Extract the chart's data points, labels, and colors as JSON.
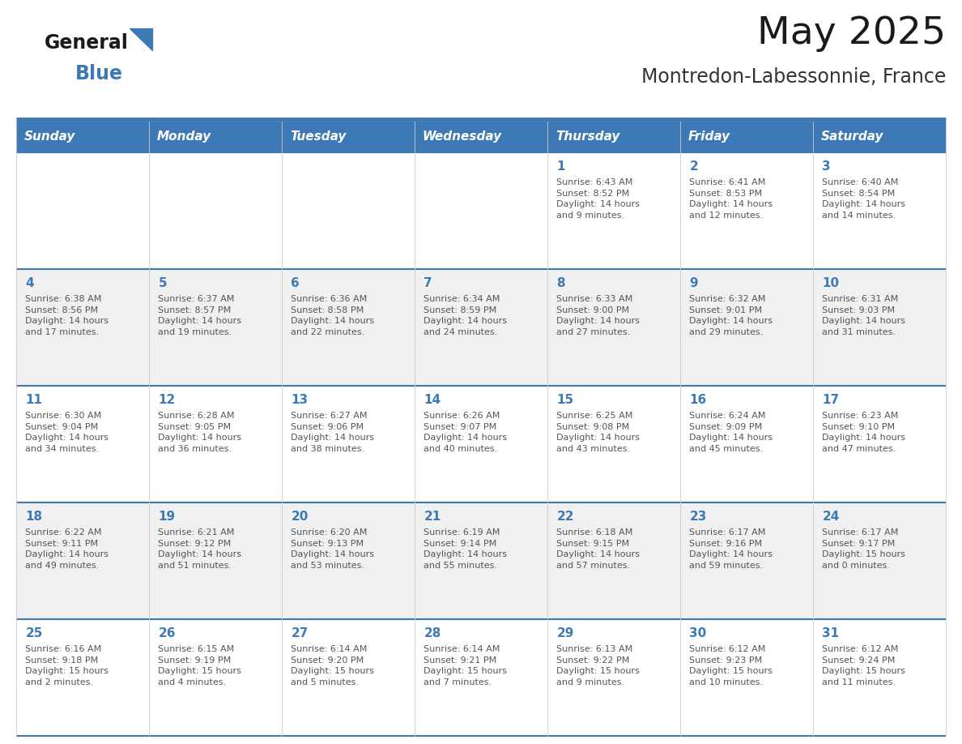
{
  "title": "May 2025",
  "subtitle": "Montredon-Labessonnie, France",
  "header_bg_color": "#3d7ab5",
  "header_text_color": "#ffffff",
  "cell_bg_white": "#ffffff",
  "cell_bg_gray": "#f0f0f0",
  "day_number_color": "#3d7ab5",
  "info_text_color": "#555555",
  "border_color": "#3d7ab5",
  "grid_line_color": "#cccccc",
  "days_of_week": [
    "Sunday",
    "Monday",
    "Tuesday",
    "Wednesday",
    "Thursday",
    "Friday",
    "Saturday"
  ],
  "weeks": [
    [
      {
        "day": "",
        "info": ""
      },
      {
        "day": "",
        "info": ""
      },
      {
        "day": "",
        "info": ""
      },
      {
        "day": "",
        "info": ""
      },
      {
        "day": "1",
        "info": "Sunrise: 6:43 AM\nSunset: 8:52 PM\nDaylight: 14 hours\nand 9 minutes."
      },
      {
        "day": "2",
        "info": "Sunrise: 6:41 AM\nSunset: 8:53 PM\nDaylight: 14 hours\nand 12 minutes."
      },
      {
        "day": "3",
        "info": "Sunrise: 6:40 AM\nSunset: 8:54 PM\nDaylight: 14 hours\nand 14 minutes."
      }
    ],
    [
      {
        "day": "4",
        "info": "Sunrise: 6:38 AM\nSunset: 8:56 PM\nDaylight: 14 hours\nand 17 minutes."
      },
      {
        "day": "5",
        "info": "Sunrise: 6:37 AM\nSunset: 8:57 PM\nDaylight: 14 hours\nand 19 minutes."
      },
      {
        "day": "6",
        "info": "Sunrise: 6:36 AM\nSunset: 8:58 PM\nDaylight: 14 hours\nand 22 minutes."
      },
      {
        "day": "7",
        "info": "Sunrise: 6:34 AM\nSunset: 8:59 PM\nDaylight: 14 hours\nand 24 minutes."
      },
      {
        "day": "8",
        "info": "Sunrise: 6:33 AM\nSunset: 9:00 PM\nDaylight: 14 hours\nand 27 minutes."
      },
      {
        "day": "9",
        "info": "Sunrise: 6:32 AM\nSunset: 9:01 PM\nDaylight: 14 hours\nand 29 minutes."
      },
      {
        "day": "10",
        "info": "Sunrise: 6:31 AM\nSunset: 9:03 PM\nDaylight: 14 hours\nand 31 minutes."
      }
    ],
    [
      {
        "day": "11",
        "info": "Sunrise: 6:30 AM\nSunset: 9:04 PM\nDaylight: 14 hours\nand 34 minutes."
      },
      {
        "day": "12",
        "info": "Sunrise: 6:28 AM\nSunset: 9:05 PM\nDaylight: 14 hours\nand 36 minutes."
      },
      {
        "day": "13",
        "info": "Sunrise: 6:27 AM\nSunset: 9:06 PM\nDaylight: 14 hours\nand 38 minutes."
      },
      {
        "day": "14",
        "info": "Sunrise: 6:26 AM\nSunset: 9:07 PM\nDaylight: 14 hours\nand 40 minutes."
      },
      {
        "day": "15",
        "info": "Sunrise: 6:25 AM\nSunset: 9:08 PM\nDaylight: 14 hours\nand 43 minutes."
      },
      {
        "day": "16",
        "info": "Sunrise: 6:24 AM\nSunset: 9:09 PM\nDaylight: 14 hours\nand 45 minutes."
      },
      {
        "day": "17",
        "info": "Sunrise: 6:23 AM\nSunset: 9:10 PM\nDaylight: 14 hours\nand 47 minutes."
      }
    ],
    [
      {
        "day": "18",
        "info": "Sunrise: 6:22 AM\nSunset: 9:11 PM\nDaylight: 14 hours\nand 49 minutes."
      },
      {
        "day": "19",
        "info": "Sunrise: 6:21 AM\nSunset: 9:12 PM\nDaylight: 14 hours\nand 51 minutes."
      },
      {
        "day": "20",
        "info": "Sunrise: 6:20 AM\nSunset: 9:13 PM\nDaylight: 14 hours\nand 53 minutes."
      },
      {
        "day": "21",
        "info": "Sunrise: 6:19 AM\nSunset: 9:14 PM\nDaylight: 14 hours\nand 55 minutes."
      },
      {
        "day": "22",
        "info": "Sunrise: 6:18 AM\nSunset: 9:15 PM\nDaylight: 14 hours\nand 57 minutes."
      },
      {
        "day": "23",
        "info": "Sunrise: 6:17 AM\nSunset: 9:16 PM\nDaylight: 14 hours\nand 59 minutes."
      },
      {
        "day": "24",
        "info": "Sunrise: 6:17 AM\nSunset: 9:17 PM\nDaylight: 15 hours\nand 0 minutes."
      }
    ],
    [
      {
        "day": "25",
        "info": "Sunrise: 6:16 AM\nSunset: 9:18 PM\nDaylight: 15 hours\nand 2 minutes."
      },
      {
        "day": "26",
        "info": "Sunrise: 6:15 AM\nSunset: 9:19 PM\nDaylight: 15 hours\nand 4 minutes."
      },
      {
        "day": "27",
        "info": "Sunrise: 6:14 AM\nSunset: 9:20 PM\nDaylight: 15 hours\nand 5 minutes."
      },
      {
        "day": "28",
        "info": "Sunrise: 6:14 AM\nSunset: 9:21 PM\nDaylight: 15 hours\nand 7 minutes."
      },
      {
        "day": "29",
        "info": "Sunrise: 6:13 AM\nSunset: 9:22 PM\nDaylight: 15 hours\nand 9 minutes."
      },
      {
        "day": "30",
        "info": "Sunrise: 6:12 AM\nSunset: 9:23 PM\nDaylight: 15 hours\nand 10 minutes."
      },
      {
        "day": "31",
        "info": "Sunrise: 6:12 AM\nSunset: 9:24 PM\nDaylight: 15 hours\nand 11 minutes."
      }
    ]
  ],
  "logo_text_general": "General",
  "logo_text_blue": "Blue",
  "logo_color_general": "#1a1a1a",
  "logo_color_blue": "#3d7ab5",
  "title_color": "#1a1a1a",
  "subtitle_color": "#333333"
}
